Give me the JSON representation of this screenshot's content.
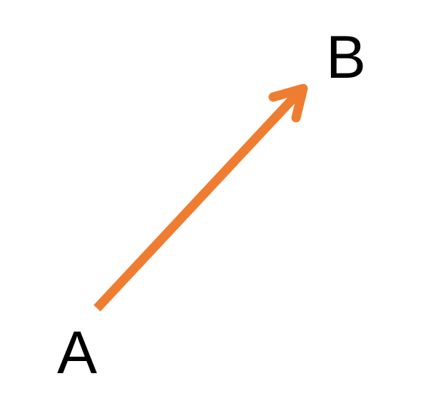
{
  "diagram": {
    "start_label": "A",
    "end_label": "B",
    "arrow_color": "#ef7d31",
    "label_color": "#000000",
    "arrow_direction": "A-to-B"
  }
}
